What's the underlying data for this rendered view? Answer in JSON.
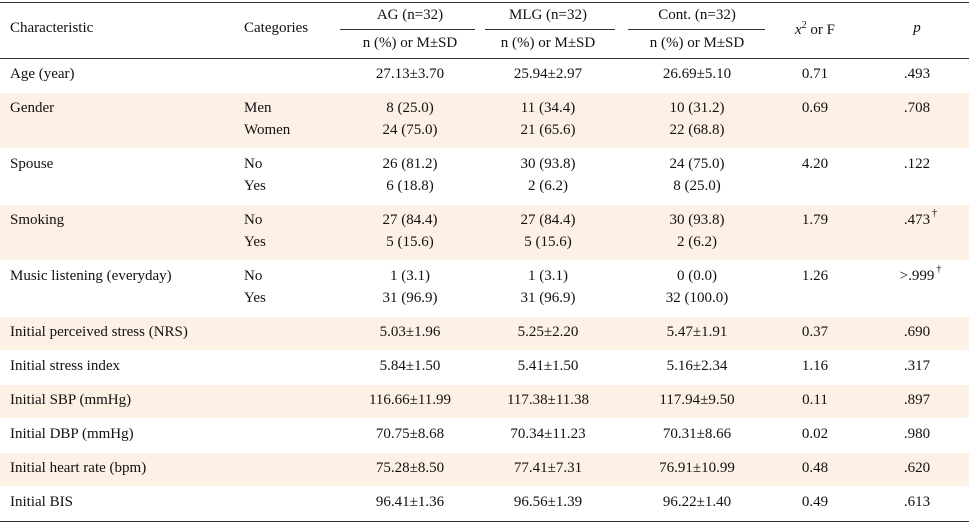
{
  "header": {
    "characteristic": "Characteristic",
    "categories": "Categories",
    "groups": [
      {
        "name": "AG (n=32)",
        "sub": "n (%) or M±SD"
      },
      {
        "name": "MLG (n=32)",
        "sub": "n (%) or M±SD"
      },
      {
        "name": "Cont. (n=32)",
        "sub": "n (%) or M±SD"
      }
    ],
    "stat": {
      "symbol": "x",
      "sup": "2",
      "rest": " or F"
    },
    "p": "p"
  },
  "rows": [
    {
      "characteristic": "Age (year)",
      "values": [
        [
          "27.13±3.70"
        ],
        [
          "25.94±2.97"
        ],
        [
          "26.69±5.10"
        ]
      ],
      "stat": "0.71",
      "p": ".493"
    },
    {
      "characteristic": "Gender",
      "categories": [
        "Men",
        "Women"
      ],
      "values": [
        [
          "8 (25.0)",
          "24 (75.0)"
        ],
        [
          "11 (34.4)",
          "21 (65.6)"
        ],
        [
          "10 (31.2)",
          "22 (68.8)"
        ]
      ],
      "stat": "0.69",
      "p": ".708"
    },
    {
      "characteristic": "Spouse",
      "categories": [
        "No",
        "Yes"
      ],
      "values": [
        [
          "26 (81.2)",
          "6 (18.8)"
        ],
        [
          "30 (93.8)",
          "2 (6.2)"
        ],
        [
          "24 (75.0)",
          "8 (25.0)"
        ]
      ],
      "stat": "4.20",
      "p": ".122"
    },
    {
      "characteristic": "Smoking",
      "categories": [
        "No",
        "Yes"
      ],
      "values": [
        [
          "27 (84.4)",
          "5 (15.6)"
        ],
        [
          "27 (84.4)",
          "5 (15.6)"
        ],
        [
          "30 (93.8)",
          "2 (6.2)"
        ]
      ],
      "stat": "1.79",
      "p": ".473",
      "p_mark": "†"
    },
    {
      "characteristic": "Music listening (everyday)",
      "categories": [
        "No",
        "Yes"
      ],
      "values": [
        [
          "1 (3.1)",
          "31 (96.9)"
        ],
        [
          "1 (3.1)",
          "31 (96.9)"
        ],
        [
          "0 (0.0)",
          "32 (100.0)"
        ]
      ],
      "stat": "1.26",
      "p": ">.999",
      "p_mark": "†"
    },
    {
      "characteristic": "Initial perceived stress (NRS)",
      "values": [
        [
          "5.03±1.96"
        ],
        [
          "5.25±2.20"
        ],
        [
          "5.47±1.91"
        ]
      ],
      "stat": "0.37",
      "p": ".690"
    },
    {
      "characteristic": "Initial stress index",
      "values": [
        [
          "5.84±1.50"
        ],
        [
          "5.41±1.50"
        ],
        [
          "5.16±2.34"
        ]
      ],
      "stat": "1.16",
      "p": ".317"
    },
    {
      "characteristic": "Initial SBP (mmHg)",
      "values": [
        [
          "116.66±11.99"
        ],
        [
          "117.38±11.38"
        ],
        [
          "117.94±9.50"
        ]
      ],
      "stat": "0.11",
      "p": ".897"
    },
    {
      "characteristic": "Initial DBP (mmHg)",
      "values": [
        [
          "70.75±8.68"
        ],
        [
          "70.34±11.23"
        ],
        [
          "70.31±8.66"
        ]
      ],
      "stat": "0.02",
      "p": ".980"
    },
    {
      "characteristic": "Initial heart rate (bpm)",
      "values": [
        [
          "75.28±8.50"
        ],
        [
          "77.41±7.31"
        ],
        [
          "76.91±10.99"
        ]
      ],
      "stat": "0.48",
      "p": ".620"
    },
    {
      "characteristic": "Initial BIS",
      "values": [
        [
          "96.41±1.36"
        ],
        [
          "96.56±1.39"
        ],
        [
          "96.22±1.40"
        ]
      ],
      "stat": "0.49",
      "p": ".613"
    }
  ]
}
